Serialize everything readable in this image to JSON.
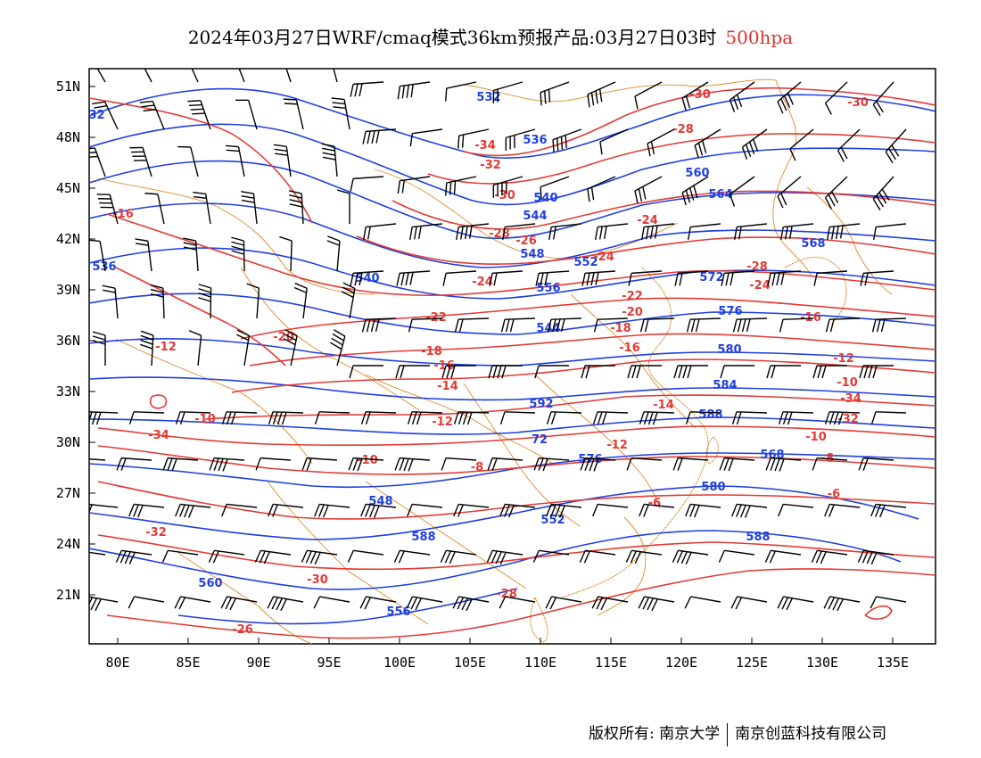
{
  "title": {
    "main": "2024年03月27日WRF/cmaq模式36km预报产品:03月27日03时",
    "level": "500hpa"
  },
  "colors": {
    "height_contours": "#1f3fe0",
    "temperature_contours": "#e23a35",
    "borders": "#e08a2a",
    "wind_barbs": "#000000"
  },
  "map": {
    "lat_labels": [
      "51N",
      "48N",
      "45N",
      "42N",
      "39N",
      "36N",
      "33N",
      "30N",
      "27N",
      "24N",
      "21N"
    ],
    "lon_labels": [
      "80E",
      "85E",
      "90E",
      "95E",
      "100E",
      "105E",
      "110E",
      "115E",
      "120E",
      "125E",
      "130E",
      "135E"
    ],
    "geopotential_height_labels": [
      "532",
      "536",
      "540",
      "544",
      "548",
      "552",
      "556",
      "560",
      "564",
      "568",
      "572",
      "576",
      "580",
      "584",
      "588",
      "592",
      "72",
      "576",
      "568",
      "580",
      "588",
      "588"
    ],
    "temperature_labels": [
      "-34",
      "-32",
      "-30",
      "-28",
      "-26",
      "-24",
      "-22",
      "-20",
      "-18",
      "-16",
      "-14",
      "-12",
      "-10",
      "-8",
      "-6",
      "-30",
      "-28",
      "-24",
      "-16",
      "-12",
      "-10"
    ]
  },
  "footer": {
    "copyright": "版权所有: 南京大学",
    "company": "南京创蓝科技有限公司"
  }
}
